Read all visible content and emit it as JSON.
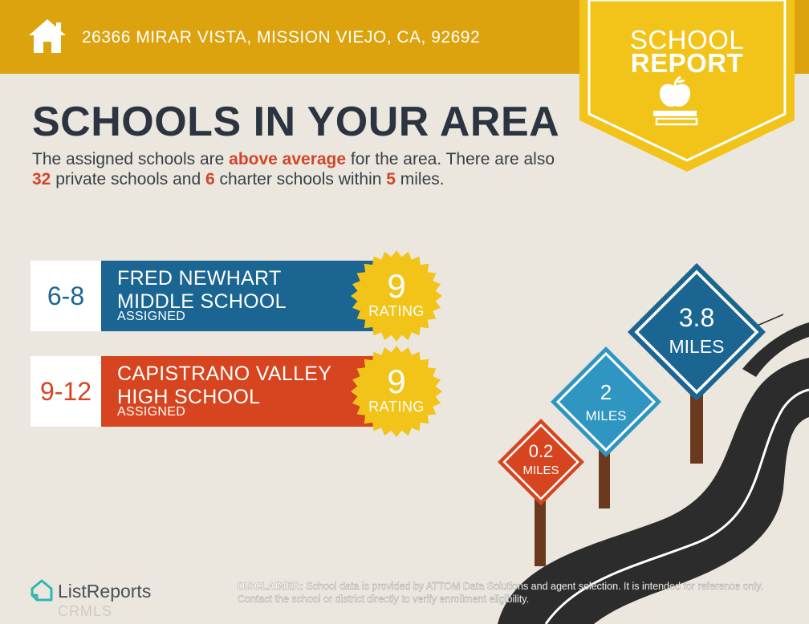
{
  "header": {
    "address": "26366 MIRAR VISTA, MISSION VIEJO, CA, 92692",
    "home_icon": "house-icon",
    "accent_color": "#dca30e"
  },
  "badge": {
    "line1": "SCHOOL",
    "line2": "REPORT",
    "icon": "apple-on-books-icon",
    "color": "#f2c318"
  },
  "title": "SCHOOLS IN YOUR AREA",
  "summary": {
    "part1": "The assigned schools are ",
    "highlight1": "above average",
    "part2": " for the area. There are also ",
    "private_count": "32",
    "part3": " private schools and ",
    "charter_count": "6",
    "part4": " charter schools within ",
    "radius": "5",
    "part5": " miles."
  },
  "schools": [
    {
      "grades": "6-8",
      "name": "FRED NEWHART MIDDLE SCHOOL",
      "status": "ASSIGNED",
      "rating": "9",
      "rating_label": "RATING",
      "color": "#1a6591"
    },
    {
      "grades": "9-12",
      "name": "CAPISTRANO VALLEY HIGH SCHOOL",
      "status": "ASSIGNED",
      "rating": "9",
      "rating_label": "RATING",
      "color": "#d6451f"
    }
  ],
  "distance_signs": [
    {
      "value": "0.2",
      "unit": "MILES",
      "color": "#d6451f"
    },
    {
      "value": "2",
      "unit": "MILES",
      "color": "#2e96c0"
    },
    {
      "value": "3.8",
      "unit": "MILES",
      "color": "#1a6591"
    }
  ],
  "footer": {
    "logo_text": "ListReports",
    "logo_icon": "listreports-house-icon",
    "watermark": "CRMLS",
    "disclaimer_label": "DISCLAIMER:",
    "disclaimer_text": " School data is provided by ATTOM Data Solutions and agent selection. It is intended for reference only. Contact the school or district directly to verify enrollment eligibility."
  }
}
